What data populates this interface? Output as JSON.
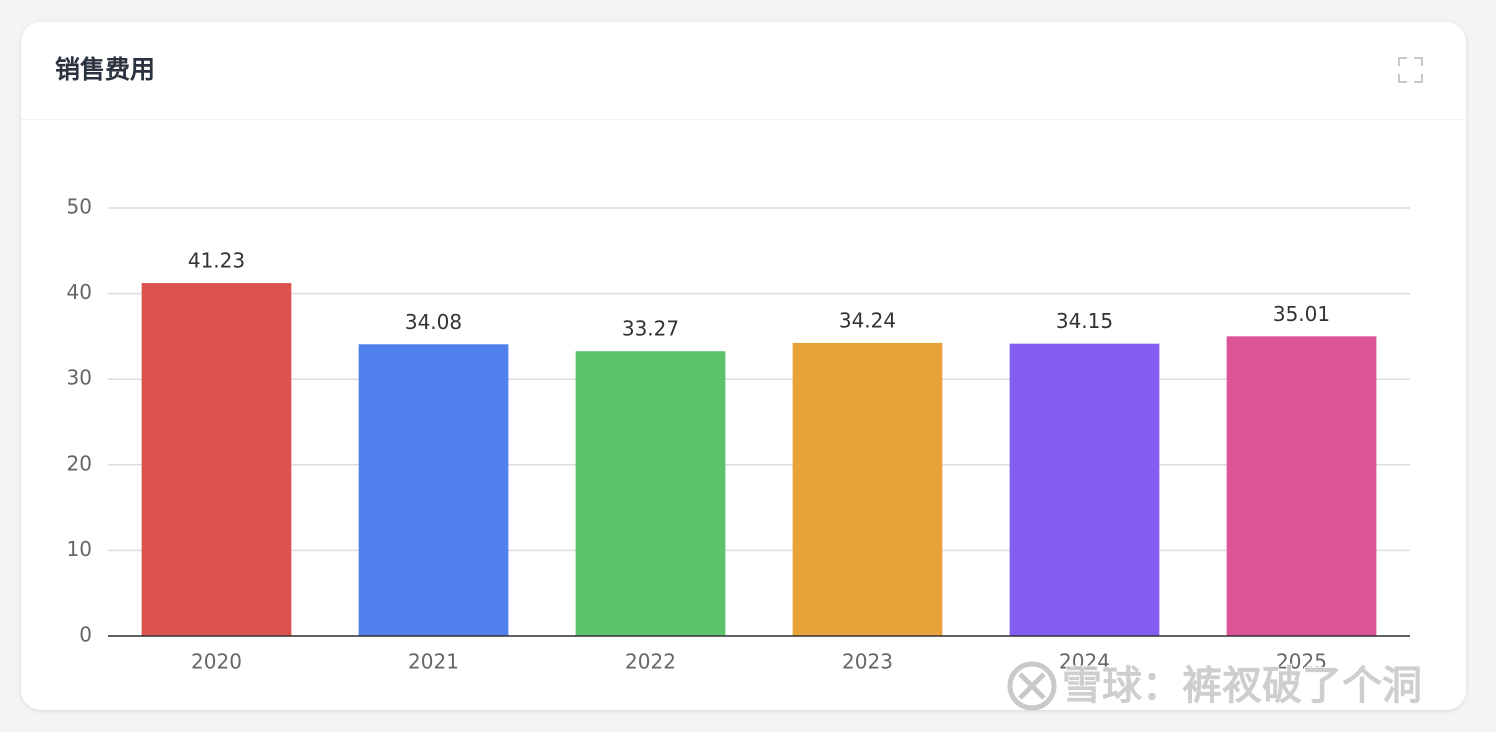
{
  "chart_data": {
    "type": "bar",
    "title": "销售费用",
    "categories": [
      "2020",
      "2021",
      "2022",
      "2023",
      "2024",
      "2025"
    ],
    "values": [
      41.23,
      34.08,
      33.27,
      34.24,
      34.15,
      35.01
    ],
    "colors": [
      "#dd524c",
      "#4f80ec",
      "#5ec46b",
      "#e8a23a",
      "#845ef0",
      "#dc5697"
    ],
    "ylim": [
      0,
      50
    ],
    "yticks": [
      0,
      10,
      20,
      30,
      40,
      50
    ],
    "grid": true,
    "data_labels": true
  },
  "watermark": "雪球：裤衩破了个洞"
}
